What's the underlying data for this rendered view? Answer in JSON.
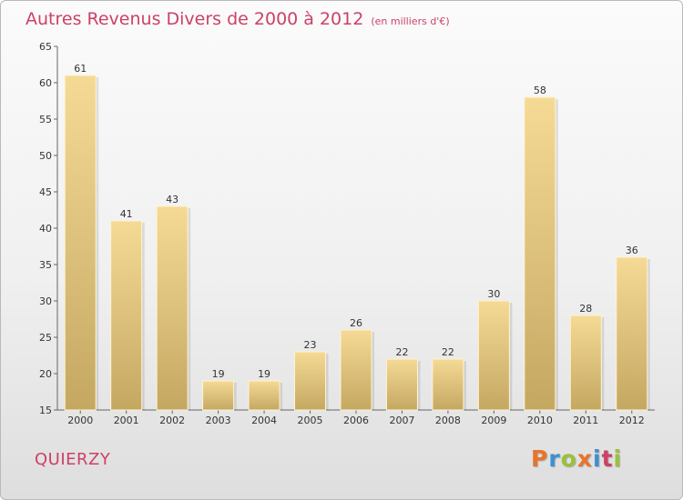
{
  "header": {
    "title": "Autres Revenus Divers de 2000 à 2012",
    "unit": "(en milliers d'€)"
  },
  "footer": {
    "place": "QUIERZY",
    "logo": [
      "P",
      "r",
      "o",
      "x",
      "i",
      "t",
      "i"
    ]
  },
  "colors": {
    "title": "#cc4166",
    "bar_light": "#f5da96",
    "bar_dark": "#c4a862",
    "logo": [
      "#e8742a",
      "#3d8fd1",
      "#9bc13b",
      "#e8742a",
      "#3d8fd1",
      "#cc4166",
      "#9bc13b"
    ]
  },
  "chart_data": {
    "type": "bar",
    "categories": [
      "2000",
      "2001",
      "2002",
      "2003",
      "2004",
      "2005",
      "2006",
      "2007",
      "2008",
      "2009",
      "2010",
      "2011",
      "2012"
    ],
    "values": [
      61,
      41,
      43,
      19,
      19,
      23,
      26,
      22,
      22,
      30,
      58,
      28,
      36
    ],
    "data_labels": [
      "61",
      "41",
      "43",
      "19",
      "19",
      "23",
      "26",
      "22",
      "22",
      "30",
      "58",
      "28",
      "36"
    ],
    "ylim": [
      15,
      65
    ],
    "yticks": [
      "15",
      "20",
      "25",
      "30",
      "35",
      "40",
      "45",
      "50",
      "55",
      "60",
      "65"
    ],
    "grid": false,
    "legend": "none"
  }
}
